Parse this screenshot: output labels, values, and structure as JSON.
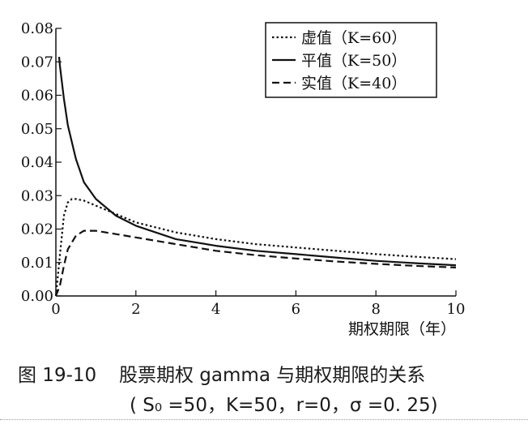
{
  "chart_data": {
    "type": "line",
    "xlabel": "期权期限（年）",
    "ylabel": "",
    "xlim": [
      0,
      10
    ],
    "ylim": [
      0,
      0.08
    ],
    "xticks": [
      "0",
      "2",
      "4",
      "6",
      "8",
      "10"
    ],
    "yticks": [
      "0.00",
      "0.01",
      "0.02",
      "0.03",
      "0.04",
      "0.05",
      "0.06",
      "0.07",
      "0.08"
    ],
    "grid": false,
    "legend_position": "top-right",
    "series": [
      {
        "name": "虚值（K=60）",
        "style": "dotted",
        "x": [
          0,
          0.1,
          0.2,
          0.3,
          0.4,
          0.5,
          0.7,
          1,
          1.5,
          2,
          3,
          4,
          5,
          6,
          7,
          8,
          9,
          10
        ],
        "y": [
          0,
          0.012,
          0.024,
          0.028,
          0.029,
          0.029,
          0.0285,
          0.027,
          0.0245,
          0.022,
          0.019,
          0.017,
          0.0155,
          0.0145,
          0.0135,
          0.0125,
          0.0117,
          0.011
        ]
      },
      {
        "name": "平值（K=50）",
        "style": "solid",
        "x": [
          0.08,
          0.1,
          0.2,
          0.3,
          0.5,
          0.7,
          1,
          1.5,
          2,
          3,
          4,
          5,
          6,
          7,
          8,
          9,
          10
        ],
        "y": [
          0.0715,
          0.069,
          0.059,
          0.051,
          0.041,
          0.034,
          0.029,
          0.024,
          0.021,
          0.017,
          0.015,
          0.0135,
          0.0125,
          0.0115,
          0.0105,
          0.0098,
          0.0092
        ]
      },
      {
        "name": "实值（K=40）",
        "style": "dashed",
        "x": [
          0,
          0.1,
          0.2,
          0.3,
          0.5,
          0.7,
          1,
          1.5,
          2,
          3,
          4,
          5,
          6,
          7,
          8,
          9,
          10
        ],
        "y": [
          0,
          0.003,
          0.009,
          0.014,
          0.018,
          0.0195,
          0.0195,
          0.0185,
          0.0175,
          0.0155,
          0.0135,
          0.0122,
          0.0112,
          0.0103,
          0.0096,
          0.009,
          0.0085
        ]
      }
    ]
  },
  "caption": {
    "number": "图 19-10",
    "title": "股票期权 gamma 与期权期限的关系",
    "params": "( S₀ =50，K=50，r=0，σ =0. 25)"
  },
  "colors": {
    "line": "#111111",
    "background": "#ffffff"
  }
}
